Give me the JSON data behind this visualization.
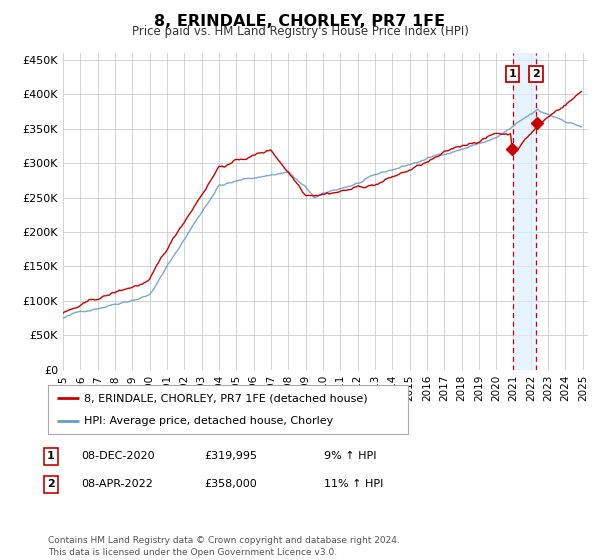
{
  "title": "8, ERINDALE, CHORLEY, PR7 1FE",
  "subtitle": "Price paid vs. HM Land Registry's House Price Index (HPI)",
  "ylim": [
    0,
    460000
  ],
  "yticks": [
    0,
    50000,
    100000,
    150000,
    200000,
    250000,
    300000,
    350000,
    400000,
    450000
  ],
  "ytick_labels": [
    "£0",
    "£50K",
    "£100K",
    "£150K",
    "£200K",
    "£250K",
    "£300K",
    "£350K",
    "£400K",
    "£450K"
  ],
  "legend_line1": "8, ERINDALE, CHORLEY, PR7 1FE (detached house)",
  "legend_line2": "HPI: Average price, detached house, Chorley",
  "line1_color": "#cc0000",
  "line2_color": "#6699cc",
  "shade_color": "#ddeeff",
  "footer": "Contains HM Land Registry data © Crown copyright and database right 2024.\nThis data is licensed under the Open Government Licence v3.0.",
  "background_color": "#ffffff",
  "grid_color": "#cccccc",
  "marker1_year": 2020.958,
  "marker2_year": 2022.292,
  "marker1_value": 319995,
  "marker2_value": 358000
}
